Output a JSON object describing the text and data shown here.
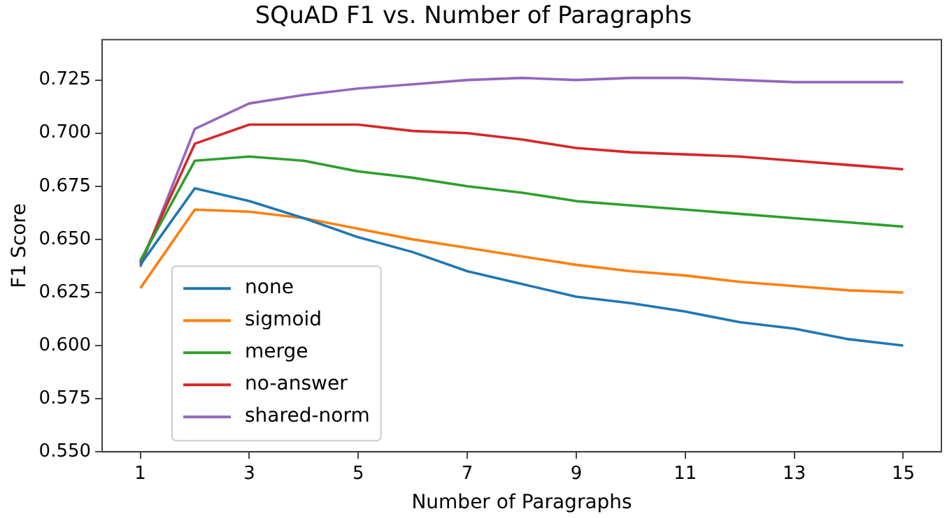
{
  "chart_data": {
    "type": "line",
    "title": "SQuAD F1 vs. Number of Paragraphs",
    "xlabel": "Number of Paragraphs",
    "ylabel": "F1 Score",
    "x": [
      1,
      2,
      3,
      4,
      5,
      6,
      7,
      8,
      9,
      10,
      11,
      12,
      13,
      14,
      15
    ],
    "series": [
      {
        "name": "none",
        "color": "#1f77b4",
        "values": [
          0.638,
          0.674,
          0.668,
          0.66,
          0.651,
          0.644,
          0.635,
          0.629,
          0.623,
          0.62,
          0.616,
          0.611,
          0.608,
          0.603,
          0.6
        ]
      },
      {
        "name": "sigmoid",
        "color": "#ff7f0e",
        "values": [
          0.627,
          0.664,
          0.663,
          0.66,
          0.655,
          0.65,
          0.646,
          0.642,
          0.638,
          0.635,
          0.633,
          0.63,
          0.628,
          0.626,
          0.625
        ]
      },
      {
        "name": "merge",
        "color": "#2ca02c",
        "values": [
          0.64,
          0.687,
          0.689,
          0.687,
          0.682,
          0.679,
          0.675,
          0.672,
          0.668,
          0.666,
          0.664,
          0.662,
          0.66,
          0.658,
          0.656
        ]
      },
      {
        "name": "no-answer",
        "color": "#d62728",
        "values": [
          0.639,
          0.695,
          0.704,
          0.704,
          0.704,
          0.701,
          0.7,
          0.697,
          0.693,
          0.691,
          0.69,
          0.689,
          0.687,
          0.685,
          0.683
        ]
      },
      {
        "name": "shared-norm",
        "color": "#9467bd",
        "values": [
          0.637,
          0.702,
          0.714,
          0.718,
          0.721,
          0.723,
          0.725,
          0.726,
          0.725,
          0.726,
          0.726,
          0.725,
          0.724,
          0.724,
          0.724
        ]
      }
    ],
    "xlim": [
      0.3,
      15.7
    ],
    "xticks": [
      1,
      3,
      5,
      7,
      9,
      11,
      13,
      15
    ],
    "ylim": [
      0.55,
      0.744
    ],
    "yticks": [
      {
        "value": 0.55,
        "label": "0.550"
      },
      {
        "value": 0.575,
        "label": "0.575"
      },
      {
        "value": 0.6,
        "label": "0.600"
      },
      {
        "value": 0.625,
        "label": "0.625"
      },
      {
        "value": 0.65,
        "label": "0.650"
      },
      {
        "value": 0.675,
        "label": "0.675"
      },
      {
        "value": 0.7,
        "label": "0.700"
      },
      {
        "value": 0.725,
        "label": "0.725"
      }
    ],
    "legend": "bottom left",
    "grid": false,
    "marker": "none",
    "line_style": "solid"
  }
}
